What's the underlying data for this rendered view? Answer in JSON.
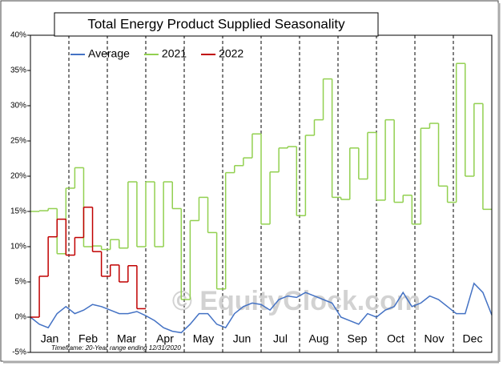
{
  "chart_data": {
    "type": "line",
    "title": "Total Energy Product Supplied Seasonality",
    "categories": [
      "Jan",
      "Feb",
      "Mar",
      "Apr",
      "May",
      "Jun",
      "Jul",
      "Aug",
      "Sep",
      "Oct",
      "Nov",
      "Dec"
    ],
    "xlim": [
      0,
      52
    ],
    "ylim": [
      -5,
      40
    ],
    "yticks": [
      {
        "value": -5,
        "label": "-5%"
      },
      {
        "value": 0,
        "label": "0%"
      },
      {
        "value": 5,
        "label": "5%"
      },
      {
        "value": 10,
        "label": "10%"
      },
      {
        "value": 15,
        "label": "15%"
      },
      {
        "value": 20,
        "label": "20%"
      },
      {
        "value": 25,
        "label": "25%"
      },
      {
        "value": 30,
        "label": "30%"
      },
      {
        "value": 35,
        "label": "35%"
      },
      {
        "value": 40,
        "label": "40%"
      }
    ],
    "step": true,
    "legend": "top",
    "annotations": [
      "© EquityClock.com",
      "Timeframe: 20-Year range ending 12/31/2020"
    ],
    "series": [
      {
        "name": "Average",
        "color": "#4472c4",
        "style": "line",
        "x": [
          0,
          1,
          2,
          3,
          4,
          5,
          6,
          7,
          8,
          9,
          10,
          11,
          12,
          13,
          14,
          15,
          16,
          17,
          18,
          19,
          20,
          21,
          22,
          23,
          24,
          25,
          26,
          27,
          28,
          29,
          30,
          31,
          32,
          33,
          34,
          35,
          36,
          37,
          38,
          39,
          40,
          41,
          42,
          43,
          44,
          45,
          46,
          47,
          48,
          49,
          50,
          51,
          52
        ],
        "values": [
          0,
          -1,
          -1.5,
          0.5,
          1.5,
          0.5,
          1,
          1.8,
          1.5,
          1,
          0.5,
          0.5,
          0.8,
          0.2,
          -0.5,
          -1.5,
          -2,
          -2.2,
          -1,
          0.5,
          0.5,
          -1,
          -1.5,
          0.5,
          1.5,
          2,
          1.8,
          1,
          2.5,
          3,
          2.8,
          3.5,
          3,
          2.5,
          2,
          0,
          -0.5,
          -1,
          0.5,
          0,
          1,
          1.5,
          3.5,
          1.5,
          2,
          3,
          2.5,
          1.5,
          0.5,
          0.5,
          4.8,
          3.5,
          0.3
        ]
      },
      {
        "name": "2021",
        "color": "#92d050",
        "style": "step",
        "x": [
          1,
          2,
          3,
          4,
          5,
          6,
          7,
          8,
          9,
          10,
          11,
          12,
          13,
          14,
          15,
          16,
          17,
          18,
          19,
          20,
          21,
          22,
          23,
          24,
          25,
          26,
          27,
          28,
          29,
          30,
          31,
          32,
          33,
          34,
          35,
          36,
          37,
          38,
          39,
          40,
          41,
          42,
          43,
          44,
          45,
          46,
          47,
          48,
          49,
          50,
          51,
          52
        ],
        "values": [
          15,
          15.1,
          15.4,
          9,
          18.3,
          21.2,
          10,
          10.1,
          9.6,
          11,
          9.8,
          19.2,
          10,
          19.2,
          10,
          19.2,
          15.4,
          2.5,
          13.7,
          17,
          12,
          4,
          20.5,
          21.5,
          22.6,
          26,
          13.2,
          20.6,
          24,
          24.2,
          14.4,
          25.8,
          28,
          33.8,
          17,
          16.7,
          24,
          19.6,
          26.2,
          16.6,
          28,
          16.3,
          17.3,
          13.2,
          26.8,
          27.5,
          18.6,
          16.3,
          36,
          20,
          30.3,
          15.3
        ]
      },
      {
        "name": "2022",
        "color": "#c00000",
        "style": "step",
        "x": [
          1,
          2,
          3,
          4,
          5,
          6,
          7,
          8,
          9,
          10,
          11,
          12,
          13
        ],
        "values": [
          0,
          5.8,
          11.4,
          13.9,
          8.8,
          11.3,
          15.6,
          9.3,
          5.8,
          7.4,
          5,
          7.3,
          1.2
        ]
      }
    ]
  }
}
